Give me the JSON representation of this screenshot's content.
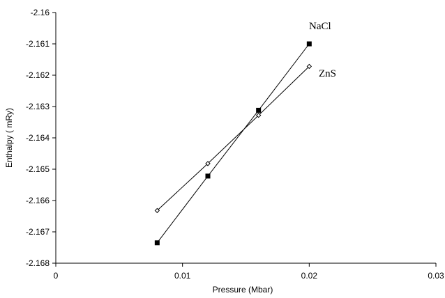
{
  "chart_data": {
    "type": "line",
    "title": "",
    "xlabel": "Pressure (Mbar)",
    "ylabel": "Enthalpy ( mRy)",
    "xlim": [
      0,
      0.03
    ],
    "ylim": [
      -2.168,
      -2.16
    ],
    "xticks": [
      0,
      0.01,
      0.02,
      0.03
    ],
    "xtick_labels": [
      "0",
      "0.01",
      "0.02",
      "0.03"
    ],
    "yticks": [
      -2.16,
      -2.161,
      -2.162,
      -2.163,
      -2.164,
      -2.165,
      -2.166,
      -2.167,
      -2.168
    ],
    "ytick_labels": [
      "-2.16",
      "-2.161",
      "-2.162",
      "-2.163",
      "-2.164",
      "-2.165",
      "-2.166",
      "-2.167",
      "-2.168"
    ],
    "grid": false,
    "series": [
      {
        "name": "NaCl",
        "marker": "square",
        "color": "#000000",
        "x": [
          0.008,
          0.012,
          0.016,
          0.02
        ],
        "y": [
          -2.16735,
          -2.16522,
          -2.16312,
          -2.161
        ]
      },
      {
        "name": "ZnS",
        "marker": "diamond",
        "color": "#000000",
        "x": [
          0.008,
          0.012,
          0.016,
          0.02
        ],
        "y": [
          -2.16632,
          -2.16482,
          -2.16328,
          -2.16172
        ]
      }
    ]
  }
}
